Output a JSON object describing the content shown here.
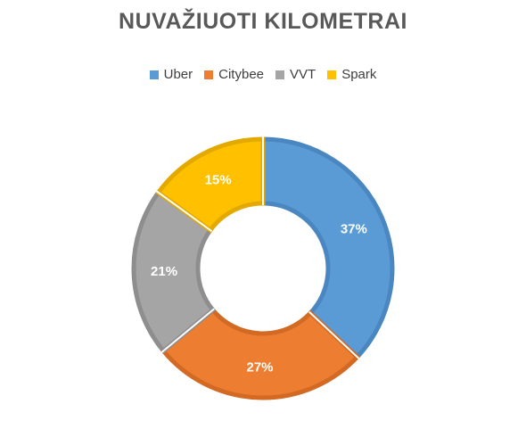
{
  "chart_data": {
    "type": "pie",
    "donut": true,
    "title": "NUVAŽIUOTI KILOMETRAI",
    "legend_position": "top",
    "slices": [
      {
        "label": "Uber",
        "value": 37,
        "value_label": "37%",
        "color": "#5B9BD5",
        "edge": "#4A87C0"
      },
      {
        "label": "Citybee",
        "value": 27,
        "value_label": "27%",
        "color": "#ED7D31",
        "edge": "#D36A24"
      },
      {
        "label": "VVT",
        "value": 21,
        "value_label": "21%",
        "color": "#A5A5A5",
        "edge": "#8E8E8E"
      },
      {
        "label": "Spark",
        "value": 15,
        "value_label": "15%",
        "color": "#FFC000",
        "edge": "#E3A900"
      }
    ]
  }
}
